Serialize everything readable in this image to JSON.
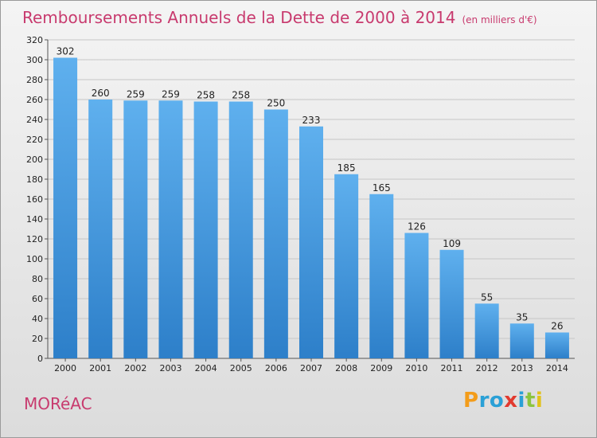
{
  "title": "Remboursements Annuels de la Dette de 2000 à 2014",
  "subtitle": "(en milliers d'€)",
  "city": "MORéAC",
  "logo": {
    "letters": [
      "P",
      "r",
      "o",
      "x",
      "i",
      "t",
      "i"
    ],
    "colors": [
      "#f39c1a",
      "#2aa0d6",
      "#2aa0d6",
      "#e23a2f",
      "#2aa0d6",
      "#8cc43e",
      "#e2c21a"
    ]
  },
  "colors": {
    "bar_top": "#5fb0ee",
    "bar_bottom": "#2d7fc9",
    "accent": "#c83a6e"
  },
  "chart_data": {
    "type": "bar",
    "title": "Remboursements Annuels de la Dette de 2000 à 2014",
    "subtitle": "(en milliers d'€)",
    "categories": [
      "2000",
      "2001",
      "2002",
      "2003",
      "2004",
      "2005",
      "2006",
      "2007",
      "2008",
      "2009",
      "2010",
      "2011",
      "2012",
      "2013",
      "2014"
    ],
    "values": [
      302,
      260,
      259,
      259,
      258,
      258,
      250,
      233,
      185,
      165,
      126,
      109,
      55,
      35,
      26
    ],
    "ylim": [
      0,
      320
    ],
    "yticks": [
      0,
      20,
      40,
      60,
      80,
      100,
      120,
      140,
      160,
      180,
      200,
      220,
      240,
      260,
      280,
      300,
      320
    ],
    "grid": true,
    "legend": "none"
  }
}
